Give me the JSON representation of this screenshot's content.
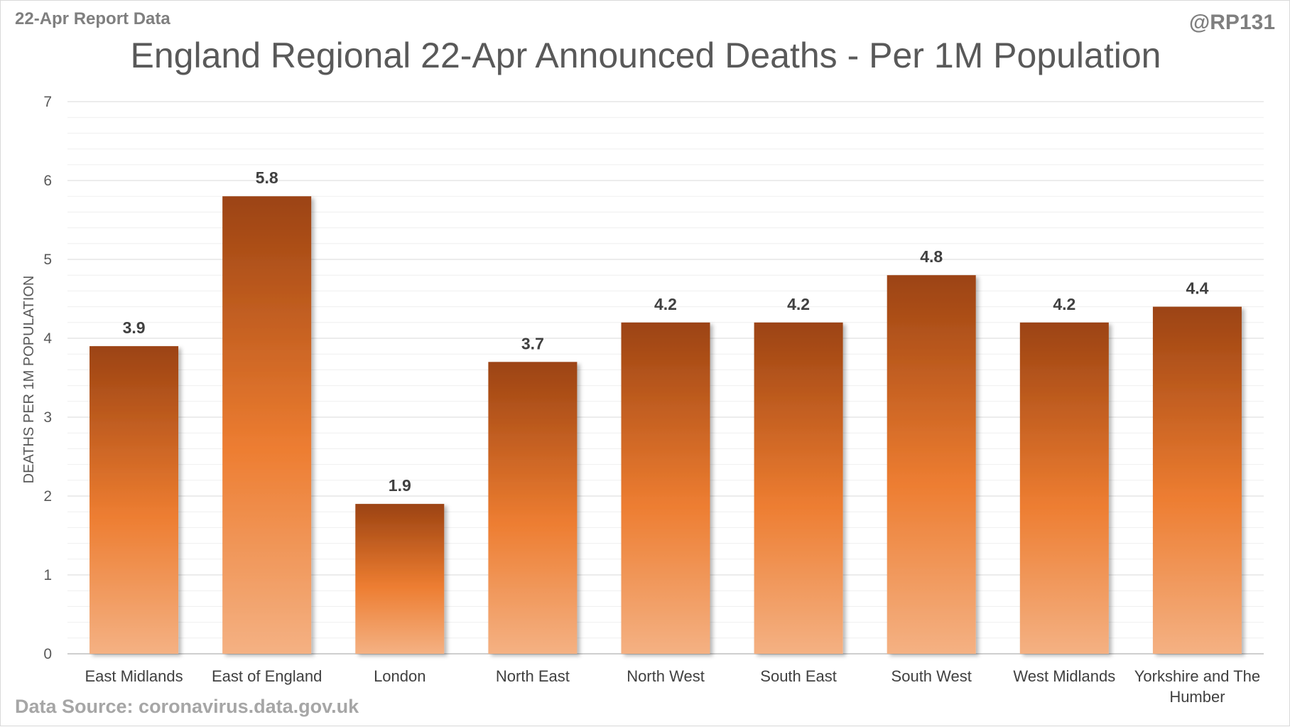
{
  "header": {
    "report_label": "22-Apr Report Data",
    "handle": "@RP131"
  },
  "footer": {
    "source": "Data Source: coronavirus.data.gov.uk"
  },
  "colors": {
    "bar_dark": "#9c4312",
    "bar_mid": "#ed7d31",
    "bar_light": "#f4b183",
    "grid": "#d9d9d9",
    "minor_grid": "#efefef"
  },
  "chart_data": {
    "type": "bar",
    "title": "England Regional 22-Apr Announced Deaths - Per 1M Population",
    "xlabel": "",
    "ylabel": "DEATHS PER 1M POPULATION",
    "categories": [
      [
        "East Midlands"
      ],
      [
        "East of England"
      ],
      [
        "London"
      ],
      [
        "North East"
      ],
      [
        "North West"
      ],
      [
        "South East"
      ],
      [
        "South West"
      ],
      [
        "West Midlands"
      ],
      [
        "Yorkshire and The",
        "Humber"
      ]
    ],
    "values": [
      3.9,
      5.8,
      1.9,
      3.7,
      4.2,
      4.2,
      4.8,
      4.2,
      4.4
    ],
    "data_labels": [
      "3.9",
      "5.8",
      "1.9",
      "3.7",
      "4.2",
      "4.2",
      "4.8",
      "4.2",
      "4.4"
    ],
    "ylim": [
      0,
      7
    ],
    "yticks": [
      0,
      1,
      2,
      3,
      4,
      5,
      6,
      7
    ],
    "minor_ytick_step": 0.2,
    "grid": true,
    "legend": "none"
  }
}
